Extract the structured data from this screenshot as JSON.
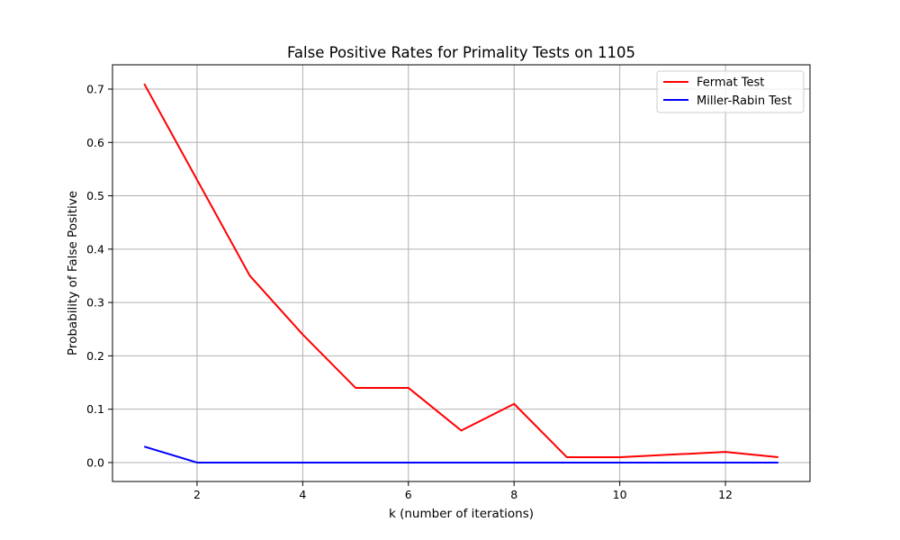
{
  "chart_data": {
    "type": "line",
    "title": "False Positive Rates for Primality Tests on 1105",
    "xlabel": "k (number of iterations)",
    "ylabel": "Probability of False Positive",
    "xlim": [
      0.4,
      13.6
    ],
    "ylim": [
      -0.0355,
      0.7455
    ],
    "x_ticks": [
      2,
      4,
      6,
      8,
      10,
      12
    ],
    "y_ticks": [
      0.0,
      0.1,
      0.2,
      0.3,
      0.4,
      0.5,
      0.6,
      0.7
    ],
    "y_tick_labels": [
      "0.0",
      "0.1",
      "0.2",
      "0.3",
      "0.4",
      "0.5",
      "0.6",
      "0.7"
    ],
    "grid": true,
    "legend_position": "top-right",
    "x": [
      1,
      2,
      3,
      4,
      5,
      6,
      7,
      8,
      9,
      10,
      11,
      12,
      13
    ],
    "series": [
      {
        "name": "Fermat Test",
        "color": "#ff0000",
        "values": [
          0.71,
          0.53,
          0.35,
          0.24,
          0.14,
          0.14,
          0.06,
          0.11,
          0.01,
          0.01,
          0.015,
          0.02,
          0.01
        ]
      },
      {
        "name": "Miller-Rabin Test",
        "color": "#0000ff",
        "values": [
          0.03,
          0.0,
          0.0,
          0.0,
          0.0,
          0.0,
          0.0,
          0.0,
          0.0,
          0.0,
          0.0,
          0.0,
          0.0
        ]
      }
    ]
  }
}
